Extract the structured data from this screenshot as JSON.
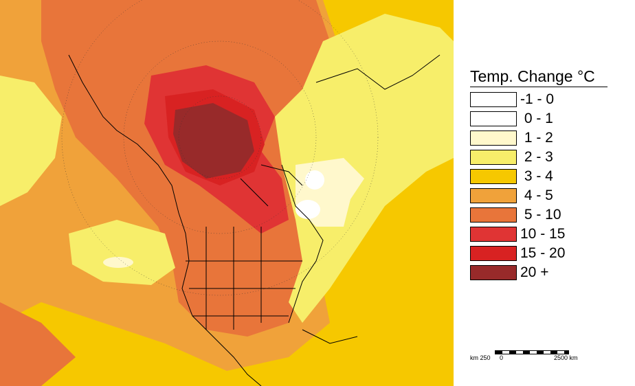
{
  "legend": {
    "title": "Temp. Change °C",
    "items": [
      {
        "label": "-1 - 0",
        "color": "#ffffff"
      },
      {
        "label": " 0 - 1",
        "color": "#ffffff"
      },
      {
        "label": " 1 - 2",
        "color": "#fff8cc"
      },
      {
        "label": " 2 - 3",
        "color": "#f7ee6a"
      },
      {
        "label": " 3 - 4",
        "color": "#f6c800"
      },
      {
        "label": " 4 - 5",
        "color": "#f0a23a"
      },
      {
        "label": " 5 - 10",
        "color": "#e8753a"
      },
      {
        "label": "10 - 15",
        "color": "#e03434"
      },
      {
        "label": "15 - 20",
        "color": "#d82222"
      },
      {
        "label": "20 +",
        "color": "#982a2a"
      }
    ]
  },
  "scale": {
    "left_label": "km 250",
    "zero_label": "0",
    "right_label": "2500 km"
  }
}
